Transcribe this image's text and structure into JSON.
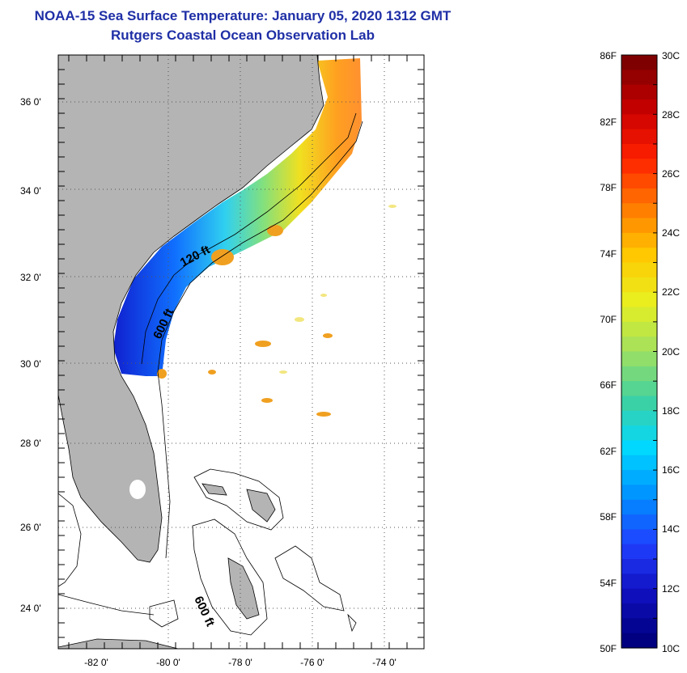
{
  "map": {
    "title_line1": "NOAA-15 Sea Surface Temperature:  January 05, 2020 1312 GMT",
    "title_line2": "Rutgers Coastal Ocean Observation Lab",
    "lat_labels": [
      "36 0'",
      "34 0'",
      "32 0'",
      "30 0'",
      "28 0'",
      "26 0'",
      "24 0'"
    ],
    "lon_labels": [
      "-82 0'",
      "-80 0'",
      "-78 0'",
      "-76 0'",
      "-74 0'"
    ],
    "contour_labels": [
      "120 ft",
      "600 ft",
      "600 ft"
    ],
    "land_color": "#b4b4b4",
    "grid": true
  },
  "colorbar": {
    "fahrenheit_labels": [
      "86F",
      "82F",
      "78F",
      "74F",
      "70F",
      "66F",
      "62F",
      "58F",
      "54F",
      "50F"
    ],
    "celsius_labels": [
      "30C",
      "28C",
      "26C",
      "24C",
      "22C",
      "20C",
      "18C",
      "16C",
      "14C",
      "12C",
      "10C"
    ],
    "colors": [
      "#7f0000",
      "#c80000",
      "#ff2000",
      "#ff7a00",
      "#ffc800",
      "#e8f020",
      "#a0e060",
      "#40d0a0",
      "#00d8ff",
      "#0090ff",
      "#2040ff",
      "#1010c0",
      "#000080"
    ]
  }
}
